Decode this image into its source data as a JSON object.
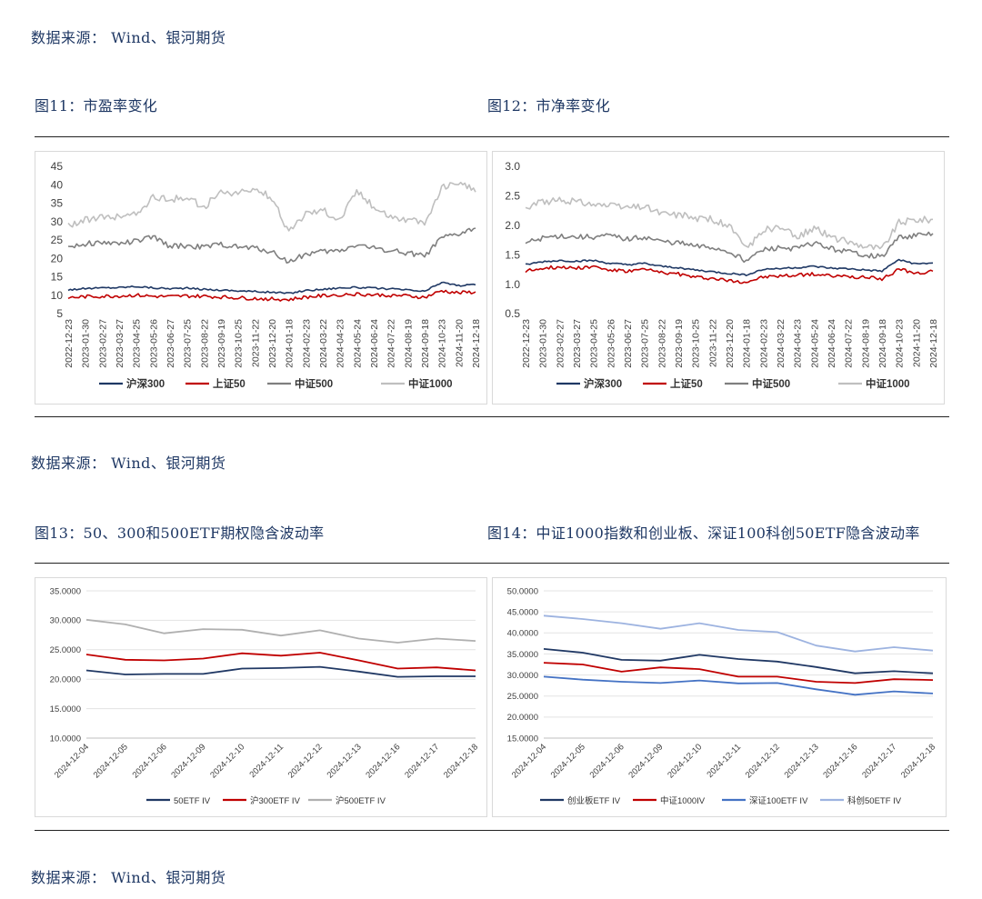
{
  "sources": [
    "数据来源：  Wind、银河期货",
    "数据来源：  Wind、银河期货",
    "数据来源：  Wind、银河期货"
  ],
  "captions": {
    "fig11": "图11：市盈率变化",
    "fig12": "图12：市净率变化",
    "fig13": "图13：50、300和500ETF期权隐含波动率",
    "fig14": "图14：中证1000指数和创业板、深证100科创50ETF隐含波动率"
  },
  "colors": {
    "navy": "#1f3864",
    "red": "#c00000",
    "gray": "#7f7f7f",
    "lightgray": "#bfbfbf",
    "iv_navy": "#203864",
    "iv_red": "#c00000",
    "iv_blue": "#4472c4",
    "iv_lightblue": "#9db3e0",
    "iv_gray": "#b0b0b0"
  },
  "chart_data": [
    {
      "id": "pe",
      "type": "line",
      "title": "",
      "ylim": [
        5,
        45
      ],
      "yticks": [
        "5",
        "10",
        "15",
        "20",
        "25",
        "30",
        "35",
        "40",
        "45"
      ],
      "x": [
        "2022-12-23",
        "2023-01-30",
        "2023-02-27",
        "2023-03-27",
        "2023-04-25",
        "2023-05-26",
        "2023-06-27",
        "2023-07-25",
        "2023-08-22",
        "2023-09-19",
        "2023-10-25",
        "2023-11-22",
        "2023-12-20",
        "2024-01-18",
        "2024-02-23",
        "2024-03-22",
        "2024-04-23",
        "2024-05-24",
        "2024-06-24",
        "2024-07-22",
        "2024-08-19",
        "2024-09-18",
        "2024-10-23",
        "2024-11-20",
        "2024-12-18"
      ],
      "series": [
        {
          "name": "沪深300",
          "color": "#1f3864",
          "values": [
            11.5,
            11.8,
            12.0,
            12.1,
            12.4,
            12.0,
            11.8,
            11.9,
            11.6,
            11.4,
            11.2,
            11.0,
            10.8,
            10.5,
            11.3,
            11.6,
            12.0,
            12.1,
            11.9,
            11.7,
            11.4,
            11.0,
            13.5,
            12.6,
            12.8
          ]
        },
        {
          "name": "上证50",
          "color": "#c00000",
          "values": [
            9.3,
            9.6,
            9.7,
            9.8,
            10.0,
            9.7,
            9.6,
            9.8,
            9.7,
            9.5,
            9.3,
            9.1,
            9.0,
            8.8,
            9.5,
            9.8,
            10.2,
            10.3,
            10.1,
            10.0,
            9.8,
            9.4,
            11.2,
            10.6,
            10.9
          ]
        },
        {
          "name": "中证500",
          "color": "#7f7f7f",
          "values": [
            23.2,
            24.0,
            24.3,
            24.0,
            24.6,
            25.8,
            23.3,
            23.4,
            23.0,
            23.8,
            23.0,
            22.8,
            21.8,
            19.0,
            21.2,
            21.8,
            22.0,
            23.8,
            22.8,
            22.2,
            21.5,
            20.5,
            25.5,
            26.5,
            28.2
          ]
        },
        {
          "name": "中证1000",
          "color": "#bfbfbf",
          "values": [
            29.0,
            30.5,
            31.0,
            31.5,
            32.0,
            36.5,
            36.0,
            36.5,
            34.0,
            38.0,
            37.5,
            38.8,
            36.5,
            27.0,
            32.5,
            33.0,
            30.5,
            38.5,
            34.0,
            31.5,
            30.5,
            29.5,
            39.0,
            41.0,
            38.0
          ]
        }
      ],
      "legend": "bottom"
    },
    {
      "id": "pb",
      "type": "line",
      "title": "",
      "ylim": [
        0.5,
        3.0
      ],
      "yticks": [
        "0.5",
        "1.0",
        "1.5",
        "2.0",
        "2.5",
        "3.0"
      ],
      "x": [
        "2022-12-23",
        "2023-01-30",
        "2023-02-27",
        "2023-03-27",
        "2023-04-25",
        "2023-05-26",
        "2023-06-27",
        "2023-07-25",
        "2023-08-22",
        "2023-09-19",
        "2023-10-25",
        "2023-11-22",
        "2023-12-20",
        "2024-01-18",
        "2024-02-23",
        "2024-03-22",
        "2024-04-23",
        "2024-05-24",
        "2024-06-24",
        "2024-07-22",
        "2024-08-19",
        "2024-09-18",
        "2024-10-23",
        "2024-11-20",
        "2024-12-18"
      ],
      "series": [
        {
          "name": "沪深300",
          "color": "#1f3864",
          "values": [
            1.33,
            1.38,
            1.4,
            1.39,
            1.4,
            1.35,
            1.33,
            1.35,
            1.3,
            1.28,
            1.24,
            1.21,
            1.18,
            1.16,
            1.25,
            1.27,
            1.28,
            1.3,
            1.27,
            1.26,
            1.24,
            1.22,
            1.42,
            1.34,
            1.36
          ]
        },
        {
          "name": "上证50",
          "color": "#c00000",
          "values": [
            1.22,
            1.28,
            1.29,
            1.28,
            1.3,
            1.24,
            1.22,
            1.25,
            1.2,
            1.17,
            1.12,
            1.1,
            1.06,
            1.04,
            1.12,
            1.14,
            1.15,
            1.17,
            1.14,
            1.13,
            1.11,
            1.09,
            1.25,
            1.18,
            1.22
          ]
        },
        {
          "name": "中证500",
          "color": "#7f7f7f",
          "values": [
            1.7,
            1.78,
            1.82,
            1.8,
            1.8,
            1.82,
            1.76,
            1.8,
            1.72,
            1.7,
            1.64,
            1.62,
            1.55,
            1.4,
            1.58,
            1.62,
            1.6,
            1.7,
            1.6,
            1.55,
            1.5,
            1.46,
            1.8,
            1.82,
            1.86
          ]
        },
        {
          "name": "中证1000",
          "color": "#bfbfbf",
          "values": [
            2.28,
            2.4,
            2.42,
            2.4,
            2.36,
            2.32,
            2.3,
            2.32,
            2.2,
            2.18,
            2.12,
            2.1,
            1.98,
            1.6,
            1.92,
            1.96,
            1.8,
            1.95,
            1.8,
            1.72,
            1.65,
            1.6,
            2.05,
            2.1,
            2.1
          ]
        }
      ],
      "legend": "bottom"
    },
    {
      "id": "iv1",
      "type": "line",
      "title": "",
      "ylim": [
        10,
        35
      ],
      "yticks": [
        "10.0000",
        "15.0000",
        "20.0000",
        "25.0000",
        "30.0000",
        "35.0000"
      ],
      "x": [
        "2024-12-04",
        "2024-12-05",
        "2024-12-06",
        "2024-12-09",
        "2024-12-10",
        "2024-12-11",
        "2024-12-12",
        "2024-12-13",
        "2024-12-16",
        "2024-12-17",
        "2024-12-18"
      ],
      "series": [
        {
          "name": "50ETF IV",
          "color": "#203864",
          "values": [
            21.5,
            20.8,
            20.9,
            20.9,
            21.8,
            21.9,
            22.1,
            21.3,
            20.4,
            20.5,
            20.5
          ]
        },
        {
          "name": "沪300ETF IV",
          "color": "#c00000",
          "values": [
            24.2,
            23.3,
            23.2,
            23.5,
            24.4,
            24.0,
            24.5,
            23.2,
            21.8,
            22.0,
            21.5
          ]
        },
        {
          "name": "沪500ETF IV",
          "color": "#b0b0b0",
          "values": [
            30.1,
            29.3,
            27.8,
            28.5,
            28.4,
            27.4,
            28.3,
            26.9,
            26.2,
            26.9,
            26.5
          ]
        }
      ],
      "legend": "bottom"
    },
    {
      "id": "iv2",
      "type": "line",
      "title": "",
      "ylim": [
        15,
        50
      ],
      "yticks": [
        "15.0000",
        "20.0000",
        "25.0000",
        "30.0000",
        "35.0000",
        "40.0000",
        "45.0000",
        "50.0000"
      ],
      "x": [
        "2024-12-04",
        "2024-12-05",
        "2024-12-06",
        "2024-12-09",
        "2024-12-10",
        "2024-12-11",
        "2024-12-12",
        "2024-12-13",
        "2024-12-16",
        "2024-12-17",
        "2024-12-18"
      ],
      "series": [
        {
          "name": "创业板ETF IV",
          "color": "#203864",
          "values": [
            36.2,
            35.3,
            33.6,
            33.4,
            34.8,
            33.8,
            33.2,
            31.9,
            30.4,
            30.9,
            30.4
          ]
        },
        {
          "name": "中证1000IV",
          "color": "#c00000",
          "values": [
            32.9,
            32.5,
            30.8,
            31.8,
            31.4,
            29.6,
            29.6,
            28.4,
            28.1,
            29.0,
            28.8
          ]
        },
        {
          "name": "深证100ETF IV",
          "color": "#4472c4",
          "values": [
            29.6,
            28.9,
            28.4,
            28.1,
            28.7,
            28.0,
            28.1,
            26.6,
            25.3,
            26.1,
            25.6
          ]
        },
        {
          "name": "科创50ETF IV",
          "color": "#9db3e0",
          "values": [
            44.1,
            43.3,
            42.3,
            41.0,
            42.3,
            40.7,
            40.2,
            37.0,
            35.6,
            36.6,
            35.8
          ]
        }
      ],
      "legend": "bottom"
    }
  ]
}
